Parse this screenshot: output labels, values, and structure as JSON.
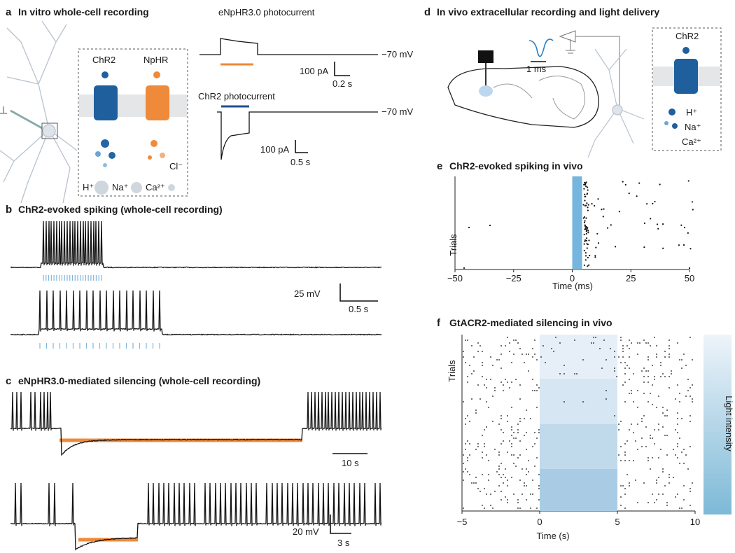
{
  "panel_a": {
    "label": "a",
    "title": "In vitro whole-cell recording",
    "nphr_trace_title": "eNpHR3.0 photocurrent",
    "nphr_holding": "−70 mV",
    "nphr_scale_y": "100 pA",
    "nphr_scale_x": "0.2 s",
    "chr2_trace_title": "ChR2 photocurrent",
    "chr2_holding": "−70 mV",
    "chr2_scale_y": "100 pA",
    "chr2_scale_x": "0.5 s",
    "opsins": [
      "ChR2",
      "NpHR"
    ],
    "anion": "Cl⁻",
    "cations": [
      "H⁺",
      "Na⁺",
      "Ca²⁺"
    ]
  },
  "panel_b": {
    "label": "b",
    "title": "ChR2-evoked spiking (whole-cell recording)",
    "scale_y": "25 mV",
    "scale_x": "0.5 s"
  },
  "panel_c": {
    "label": "c",
    "title": "eNpHR3.0-mediated silencing (whole-cell recording)",
    "scale_x_top": "10 s",
    "scale_y": "20 mV",
    "scale_x": "3 s"
  },
  "panel_d": {
    "label": "d",
    "title": "In vivo extracellular recording and light delivery",
    "waveform_scale": "1 ms",
    "opsin": "ChR2",
    "cations": [
      "H⁺",
      "Na⁺",
      "Ca²⁺"
    ]
  },
  "panel_e": {
    "label": "e",
    "title": "ChR2-evoked  spiking in vivo",
    "x_label": "Time (ms)",
    "y_label": "Trials",
    "xlim": [
      -50,
      50
    ],
    "xticks": [
      {
        "value": -50,
        "label": "−50"
      },
      {
        "value": -25,
        "label": "−25"
      },
      0,
      25,
      50
    ]
  },
  "panel_f": {
    "label": "f",
    "title": "GtACR2-mediated silencing in vivo",
    "x_label": "Time (s)",
    "y_label": "Trials",
    "colorbar_label": "Light intensity",
    "xlim": [
      -5,
      10
    ],
    "xticks": [
      {
        "value": -5,
        "label": "−5"
      },
      0,
      5,
      10
    ]
  }
}
